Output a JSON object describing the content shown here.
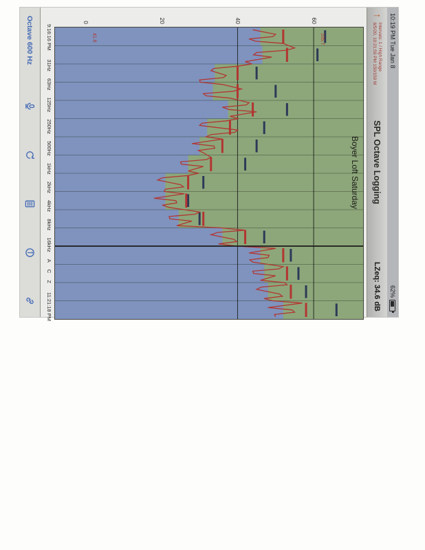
{
  "status_bar": {
    "left": "10:19 PM Tue Jan 8",
    "battery_percent": "62%"
  },
  "nav_bar": {
    "share_icon": "up-arrow",
    "info_line1": "Intervals: 1 / High Range",
    "info_line2": "6/5/20, 10:21:59 PM  150/150 M",
    "title": "SPL Octave Logging",
    "reading": "LZeq: 34.6 dB"
  },
  "session_title": "Boyer Loft Saturday",
  "toolbar": {
    "mode_label": "Octave 600 Hz",
    "icons": [
      "microphone",
      "refresh",
      "document",
      "info",
      "link"
    ]
  },
  "chart_data": {
    "type": "area",
    "title": "Boyer Loft Saturday",
    "x_start": "9:16:16 PM",
    "x_end": "11:21:18 PM",
    "xlabel": "time",
    "ylabel": "dB",
    "y_ticks": [
      0,
      20,
      40,
      60
    ],
    "y_range": [
      -8,
      73
    ],
    "grid_db": [
      40,
      60
    ],
    "band_selector": [
      "31Hz",
      "63Hz",
      "125Hz",
      "250Hz",
      "500Hz",
      "1kHz",
      "2kHz",
      "4kHz",
      "8kHz",
      "16kHz",
      "A",
      "C",
      "Z"
    ],
    "intervals_leq": [
      46,
      46.5,
      34,
      33.5,
      37.5,
      32,
      30,
      27,
      21,
      21,
      24.5,
      36,
      46,
      47,
      48,
      52
    ],
    "intervals_max": [
      52,
      53,
      40,
      40,
      44,
      38,
      36,
      33,
      27,
      26.5,
      31,
      42,
      52,
      53,
      54,
      58
    ],
    "intervals_peak": [
      63,
      61,
      45,
      50,
      53,
      47,
      45,
      42,
      31,
      27,
      30,
      47,
      54,
      56,
      58,
      66
    ],
    "trace_laeq": [
      44,
      50,
      43,
      52,
      55,
      45,
      49,
      42,
      40,
      33,
      37,
      30,
      36,
      41,
      31,
      38,
      43,
      36,
      45,
      38,
      37,
      30,
      40,
      33,
      36,
      28,
      34,
      31,
      33,
      25,
      31,
      27,
      27,
      19,
      25,
      21,
      26,
      18,
      24,
      22,
      30,
      22,
      28,
      24,
      42,
      33,
      39,
      35,
      50,
      43,
      48,
      44,
      52,
      44,
      50,
      46,
      53,
      45,
      51,
      47,
      57,
      48,
      55,
      50
    ],
    "cursor_index": 12,
    "cursor_reading": "LZeq: 34.6 dB",
    "annotations": [
      {
        "x": 8,
        "db": 62,
        "text": "105.7"
      },
      {
        "x": 8,
        "db": 2,
        "text": "41.8"
      }
    ],
    "colors": {
      "bg_green": "#8aab72",
      "bar_blue": "#7b95cc",
      "trace_red": "#cc2b25",
      "peak_navy": "#26345c",
      "cursor_black": "#151515"
    }
  }
}
